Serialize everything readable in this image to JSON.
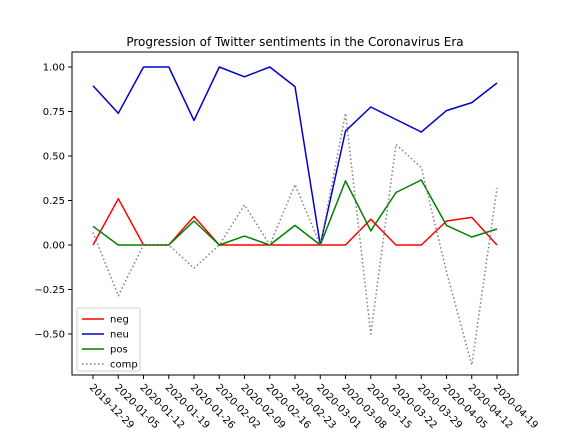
{
  "chart_data": {
    "type": "line",
    "title": "Progression of Twitter sentiments in the Coronavirus Era",
    "xlabel": "",
    "ylabel": "",
    "categories": [
      "2019-12-29",
      "2020-01-05",
      "2020-01-12",
      "2020-01-19",
      "2020-01-26",
      "2020-02-02",
      "2020-02-09",
      "2020-02-16",
      "2020-02-23",
      "2020-03-01",
      "2020-03-08",
      "2020-03-15",
      "2020-03-22",
      "2020-03-29",
      "2020-04-05",
      "2020-04-12",
      "2020-04-19"
    ],
    "ylim": [
      -0.75,
      1.12
    ],
    "yticks": [
      1.0,
      0.75,
      0.5,
      0.25,
      0.0,
      -0.25,
      -0.5
    ],
    "ytick_labels": [
      "1.00",
      "0.75",
      "0.50",
      "0.25",
      "0.00",
      "−0.25",
      "−0.50"
    ],
    "grid": false,
    "legend_position": "lower-left",
    "series": [
      {
        "name": "neg",
        "color": "#ff0000",
        "style": "solid",
        "values": [
          0.0,
          0.26,
          0.0,
          0.0,
          0.16,
          0.0,
          0.0,
          0.0,
          0.0,
          0.0,
          0.0,
          0.145,
          0.0,
          0.0,
          0.135,
          0.155,
          0.0
        ]
      },
      {
        "name": "neu",
        "color": "#0000cc",
        "style": "solid",
        "values": [
          0.895,
          0.74,
          1.0,
          1.0,
          0.7,
          1.0,
          0.945,
          1.0,
          0.89,
          0.0,
          0.64,
          0.775,
          0.705,
          0.635,
          0.755,
          0.8,
          0.91
        ]
      },
      {
        "name": "pos",
        "color": "#008000",
        "style": "solid",
        "values": [
          0.105,
          0.0,
          0.0,
          0.0,
          0.135,
          0.0,
          0.05,
          0.0,
          0.11,
          0.0,
          0.36,
          0.08,
          0.295,
          0.365,
          0.11,
          0.045,
          0.09
        ]
      },
      {
        "name": "comp",
        "color": "#808080",
        "style": "dotted",
        "values": [
          0.07,
          -0.285,
          0.0,
          0.0,
          -0.13,
          0.0,
          0.225,
          0.0,
          0.34,
          0.0,
          0.74,
          -0.5,
          0.565,
          0.435,
          -0.15,
          -0.675,
          0.32
        ]
      }
    ]
  }
}
